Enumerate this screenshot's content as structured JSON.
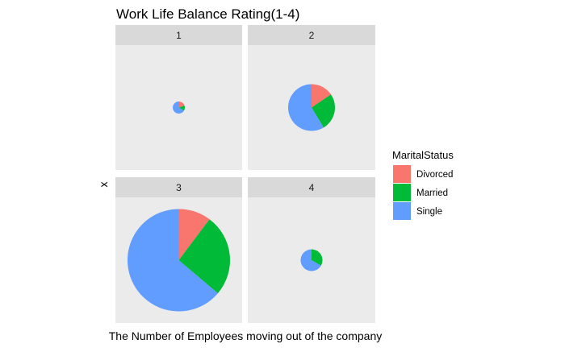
{
  "chart_data": {
    "type": "pie",
    "title": "Work Life Balance Rating(1-4)",
    "xlabel": "The Number of Employees moving out of the company",
    "ylabel": "x",
    "facet_variable": "WorkLifeBalance",
    "facets": [
      "1",
      "2",
      "3",
      "4"
    ],
    "legend": {
      "title": "MaritalStatus",
      "position": "right",
      "entries": [
        "Divorced",
        "Married",
        "Single"
      ]
    },
    "colors": {
      "Divorced": "#F8766D",
      "Married": "#00BA38",
      "Single": "#619CFF"
    },
    "panels": [
      {
        "facet": "1",
        "values": [
          {
            "status": "Divorced",
            "count": 3
          },
          {
            "status": "Married",
            "count": 2
          },
          {
            "status": "Single",
            "count": 10
          }
        ]
      },
      {
        "facet": "2",
        "values": [
          {
            "status": "Divorced",
            "count": 9
          },
          {
            "status": "Married",
            "count": 15
          },
          {
            "status": "Single",
            "count": 34
          }
        ]
      },
      {
        "facet": "3",
        "values": [
          {
            "status": "Divorced",
            "count": 13
          },
          {
            "status": "Married",
            "count": 33
          },
          {
            "status": "Single",
            "count": 81
          }
        ]
      },
      {
        "facet": "4",
        "values": [
          {
            "status": "Divorced",
            "count": 0
          },
          {
            "status": "Married",
            "count": 9
          },
          {
            "status": "Single",
            "count": 18
          }
        ]
      }
    ],
    "grid": false
  }
}
